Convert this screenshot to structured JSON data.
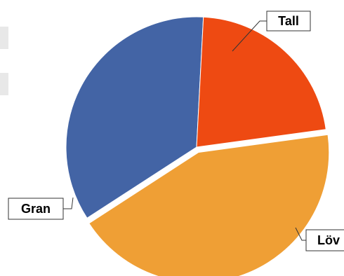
{
  "chart_data": {
    "type": "pie",
    "title": "",
    "slices": [
      {
        "label": "Tall",
        "value": 35,
        "color": "#4364a5",
        "exploded": false
      },
      {
        "label": "Löv",
        "value": 22,
        "color": "#ee4a12",
        "exploded": false
      },
      {
        "label": "Gran",
        "value": 43,
        "color": "#ef9f35",
        "exploded": true
      }
    ],
    "start_angle_deg": 237,
    "direction": "clockwise",
    "legend": "none",
    "labels": "callout-boxes"
  }
}
